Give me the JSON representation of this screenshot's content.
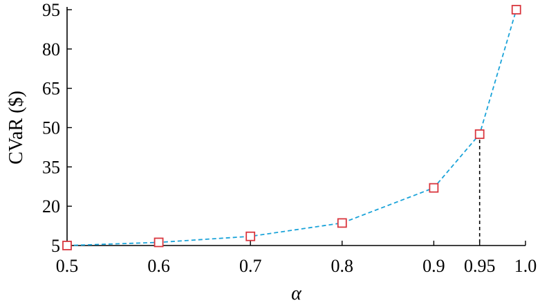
{
  "chart_data": {
    "type": "line",
    "x": [
      0.5,
      0.6,
      0.7,
      0.8,
      0.9,
      0.95,
      0.99
    ],
    "series": [
      {
        "values": [
          5,
          6.2,
          8.5,
          13.6,
          27,
          47.5,
          95
        ]
      }
    ],
    "xlabel": "α",
    "ylabel": "CVaR ($)",
    "xticks": [
      0.5,
      0.6,
      0.7,
      0.8,
      0.9,
      0.95,
      1.0
    ],
    "xtick_labels": [
      "0.5",
      "0.6",
      "0.7",
      "0.8",
      "0.9",
      "0.95",
      "1.0"
    ],
    "yticks": [
      5,
      20,
      35,
      50,
      65,
      80,
      95
    ],
    "ytick_labels": [
      "5",
      "20",
      "35",
      "50",
      "65",
      "80",
      "95"
    ],
    "xlim": [
      0.5,
      1.0
    ],
    "ylim": [
      5,
      95
    ],
    "reference_line": {
      "x": 0.95,
      "y": 47.5,
      "style": "dashed"
    },
    "grid": false,
    "legend": "none",
    "colors": {
      "line": "#1aa3d9",
      "marker": "#d9363e",
      "axis": "#000000",
      "reference": "#000000"
    }
  }
}
